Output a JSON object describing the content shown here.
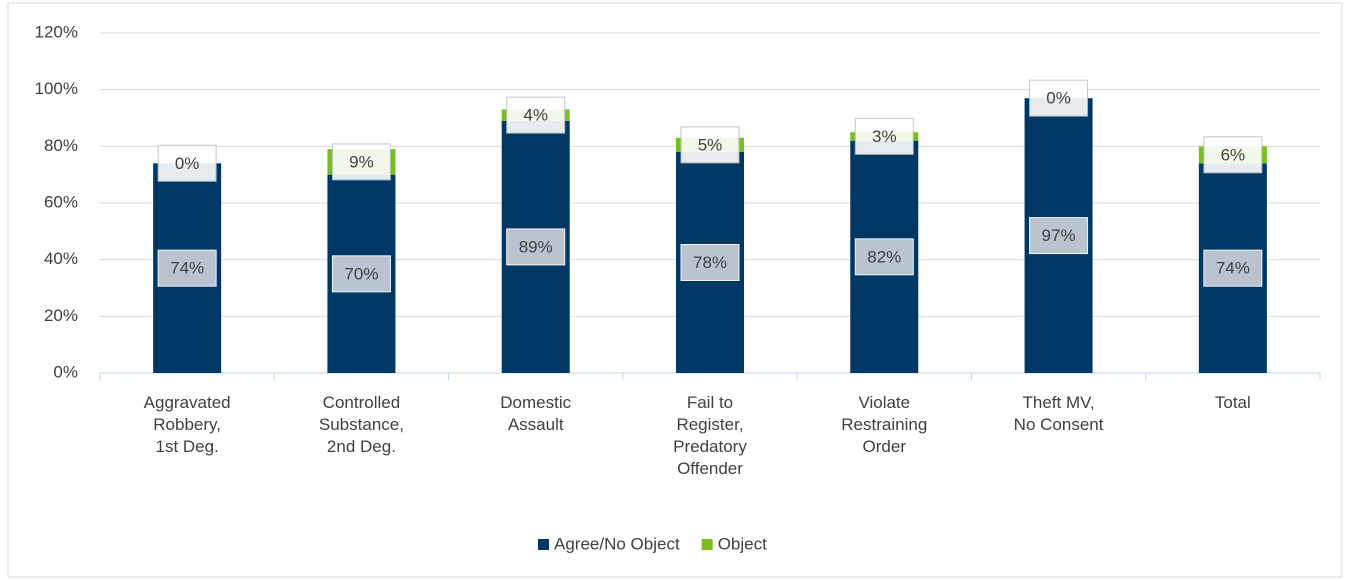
{
  "chart_data": {
    "type": "stacked_bar",
    "categories": [
      "Aggravated Robbery, 1st Deg.",
      "Controlled Substance, 2nd Deg.",
      "Domestic Assault",
      "Fail to Register, Predatory Offender",
      "Violate Restraining Order",
      "Theft MV, No Consent",
      "Total"
    ],
    "series": [
      {
        "name": "Agree/No Object",
        "color": "#003865",
        "values": [
          74,
          70,
          89,
          78,
          82,
          97,
          74
        ],
        "value_labels": [
          "74%",
          "70%",
          "89%",
          "78%",
          "82%",
          "97%",
          "74%"
        ]
      },
      {
        "name": "Object",
        "color": "#78be20",
        "values": [
          0,
          9,
          4,
          5,
          3,
          0,
          6
        ],
        "value_labels": [
          "0%",
          "9%",
          "4%",
          "5%",
          "3%",
          "0%",
          "6%"
        ]
      }
    ],
    "ylim": [
      0,
      120
    ],
    "yticks": [
      {
        "value": 0,
        "label": "0%"
      },
      {
        "value": 20,
        "label": "20%"
      },
      {
        "value": 40,
        "label": "40%"
      },
      {
        "value": 60,
        "label": "60%"
      },
      {
        "value": 80,
        "label": "80%"
      },
      {
        "value": 100,
        "label": "100%"
      },
      {
        "value": 120,
        "label": "120%"
      }
    ],
    "grid": true,
    "legend": "bottom"
  }
}
